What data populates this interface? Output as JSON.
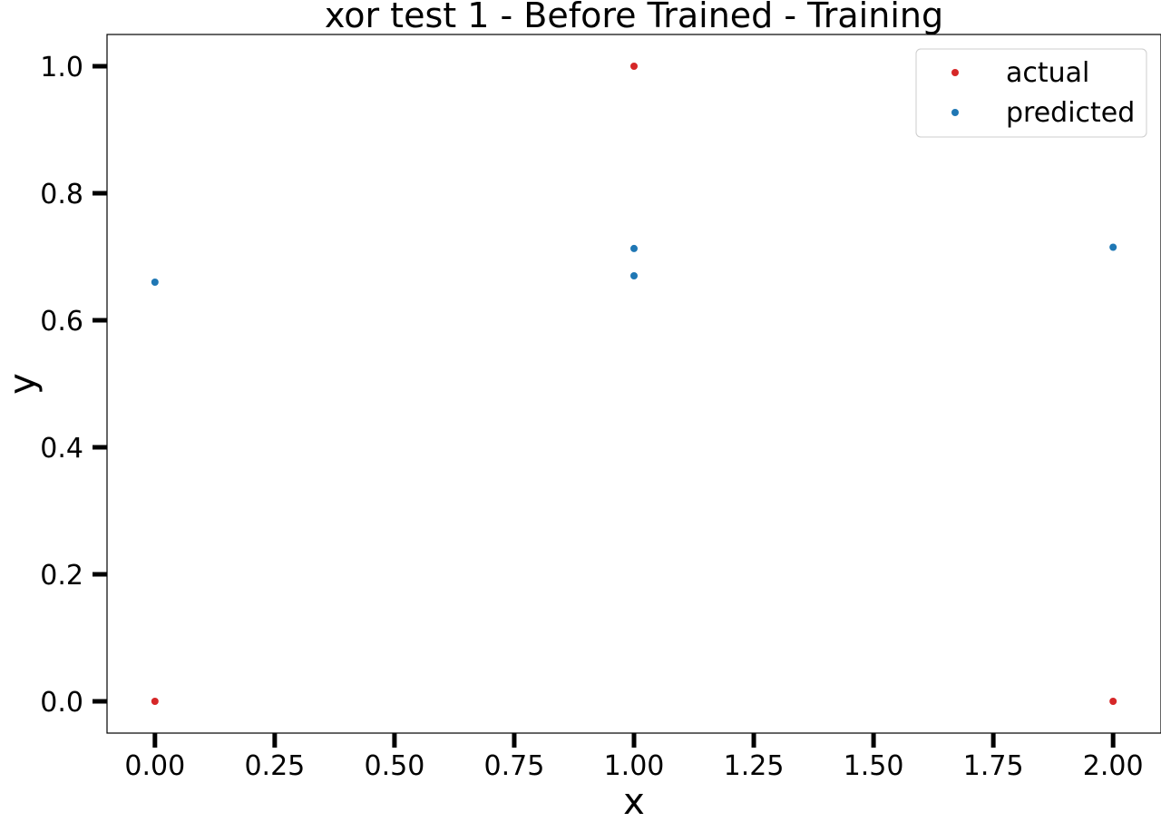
{
  "chart_data": {
    "type": "scatter",
    "title": "xor test 1 - Before Trained - Training",
    "xlabel": "x",
    "ylabel": "y",
    "xlim": [
      -0.1,
      2.1
    ],
    "ylim": [
      -0.05,
      1.05
    ],
    "xticks": [
      0.0,
      0.25,
      0.5,
      0.75,
      1.0,
      1.25,
      1.5,
      1.75,
      2.0
    ],
    "xtick_labels": [
      "0.00",
      "0.25",
      "0.50",
      "0.75",
      "1.00",
      "1.25",
      "1.50",
      "1.75",
      "2.00"
    ],
    "yticks": [
      0.0,
      0.2,
      0.4,
      0.6,
      0.8,
      1.0
    ],
    "ytick_labels": [
      "0.0",
      "0.2",
      "0.4",
      "0.6",
      "0.8",
      "1.0"
    ],
    "grid": false,
    "legend_position": "top-right",
    "series": [
      {
        "name": "actual",
        "color": "#d62728",
        "points": [
          {
            "x": 0,
            "y": 0.0
          },
          {
            "x": 1,
            "y": 1.0
          },
          {
            "x": 2,
            "y": 0.0
          }
        ]
      },
      {
        "name": "predicted",
        "color": "#1f77b4",
        "points": [
          {
            "x": 0,
            "y": 0.66
          },
          {
            "x": 1,
            "y": 0.713
          },
          {
            "x": 1,
            "y": 0.67
          },
          {
            "x": 2,
            "y": 0.715
          }
        ]
      }
    ]
  }
}
